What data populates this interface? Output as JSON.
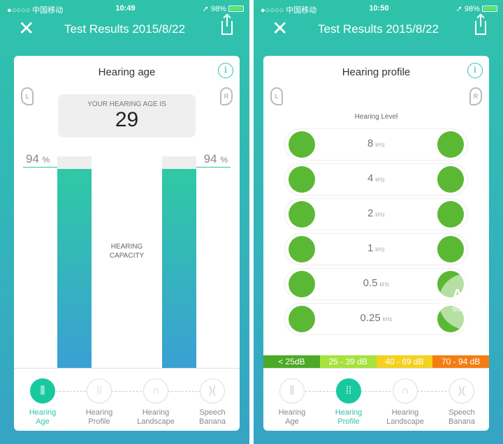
{
  "screens": [
    {
      "status": {
        "carrier": "●○○○○ 中国移动",
        "time": "10:49",
        "battery": "98%"
      },
      "title": "Test Results 2015/8/22"
    },
    {
      "status": {
        "carrier": "●○○○○ 中国移动",
        "time": "10:50",
        "battery": "98%"
      },
      "title": "Test Results 2015/8/22"
    }
  ],
  "age": {
    "title": "Hearing age",
    "ear_left": "L",
    "ear_right": "R",
    "label": "YOUR HEARING AGE IS",
    "value": "29",
    "left_pct": "94",
    "right_pct": "94",
    "pct_unit": "%",
    "left_fill": 94,
    "right_fill": 94,
    "capacity_line1": "HEARING",
    "capacity_line2": "CAPACITY"
  },
  "profile": {
    "title": "Hearing profile",
    "ear_left": "L",
    "ear_right": "R",
    "level_label": "Hearing Level",
    "unit": "kHz",
    "rows": [
      {
        "freq": "8"
      },
      {
        "freq": "4"
      },
      {
        "freq": "2"
      },
      {
        "freq": "1"
      },
      {
        "freq": "0.5"
      },
      {
        "freq": "0.25"
      }
    ],
    "legend": [
      {
        "label": "< 25dB",
        "color": "#4caa28"
      },
      {
        "label": "25 - 39 dB",
        "color": "#a6e23c"
      },
      {
        "label": "40 - 69 dB",
        "color": "#f5d11f"
      },
      {
        "label": "70 - 94 dB",
        "color": "#f47d12"
      }
    ],
    "dot_color": "#5bb834"
  },
  "nav": [
    {
      "l1": "Hearing",
      "l2": "Age",
      "icon": "bars-icon"
    },
    {
      "l1": "Hearing",
      "l2": "Profile",
      "icon": "dots-icon"
    },
    {
      "l1": "Hearing",
      "l2": "Landscape",
      "icon": "landscape-icon"
    },
    {
      "l1": "Speech",
      "l2": "Banana",
      "icon": "banana-icon"
    }
  ],
  "accent": "#2fc3aa",
  "watermark": {
    "l1": "APP",
    "l2": "solution"
  }
}
